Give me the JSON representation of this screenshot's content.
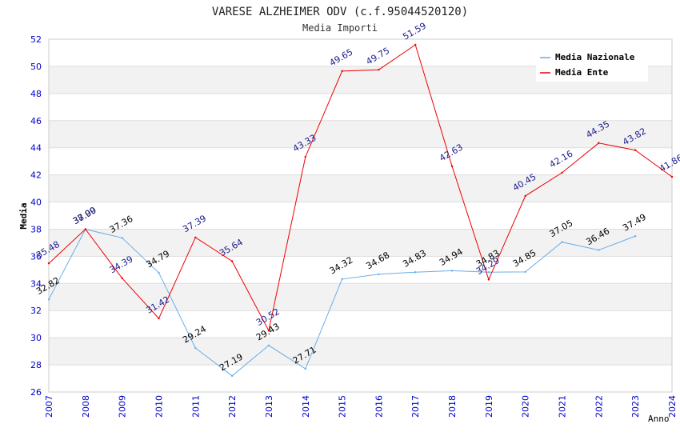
{
  "chart_data": {
    "type": "line",
    "title": "VARESE ALZHEIMER ODV (c.f.95044520120)",
    "subtitle": "Media Importi",
    "xlabel": "Anno",
    "ylabel": "Media",
    "categories": [
      "2007",
      "2008",
      "2009",
      "2010",
      "2011",
      "2012",
      "2013",
      "2014",
      "2015",
      "2016",
      "2017",
      "2018",
      "2019",
      "2020",
      "2021",
      "2022",
      "2023",
      "2024"
    ],
    "ylim": [
      26,
      52
    ],
    "yticks": [
      26,
      28,
      30,
      32,
      34,
      36,
      38,
      40,
      42,
      44,
      46,
      48,
      50,
      52
    ],
    "legend_position": "top-right",
    "series": [
      {
        "name": "Media Nazionale",
        "color": "#6aaee8",
        "label_color": "#000000",
        "values": [
          32.82,
          37.99,
          37.36,
          34.79,
          29.24,
          27.19,
          29.43,
          27.71,
          34.32,
          34.68,
          34.83,
          34.94,
          34.83,
          34.85,
          37.05,
          36.46,
          37.49,
          null
        ],
        "labels": [
          "32.82",
          "37.99",
          "37.36",
          "34.79",
          "29.24",
          "27.19",
          "29.43",
          "27.71",
          "34.32",
          "34.68",
          "34.83",
          "34.94",
          "34.83",
          "34.85",
          "37.05",
          "36.46",
          "37.49",
          ""
        ]
      },
      {
        "name": "Media Ente",
        "color": "#ee0000",
        "label_color": "#1a1a8c",
        "values": [
          35.48,
          38.0,
          34.39,
          31.42,
          37.39,
          35.64,
          30.52,
          43.33,
          49.65,
          49.75,
          51.59,
          42.63,
          34.29,
          40.45,
          42.16,
          44.35,
          43.82,
          41.86
        ],
        "labels": [
          "35.48",
          "38.00",
          "34.39",
          "31.42",
          "37.39",
          "35.64",
          "30.52",
          "43.33",
          "49.65",
          "49.75",
          "51.59",
          "42.63",
          "34.29",
          "40.45",
          "42.16",
          "44.35",
          "43.82",
          "41.86"
        ]
      }
    ],
    "colors": {
      "tick_text": "#0000cc",
      "title_text": "#222222",
      "grid_band": "#f2f2f2",
      "grid_line": "#dddddd"
    }
  }
}
